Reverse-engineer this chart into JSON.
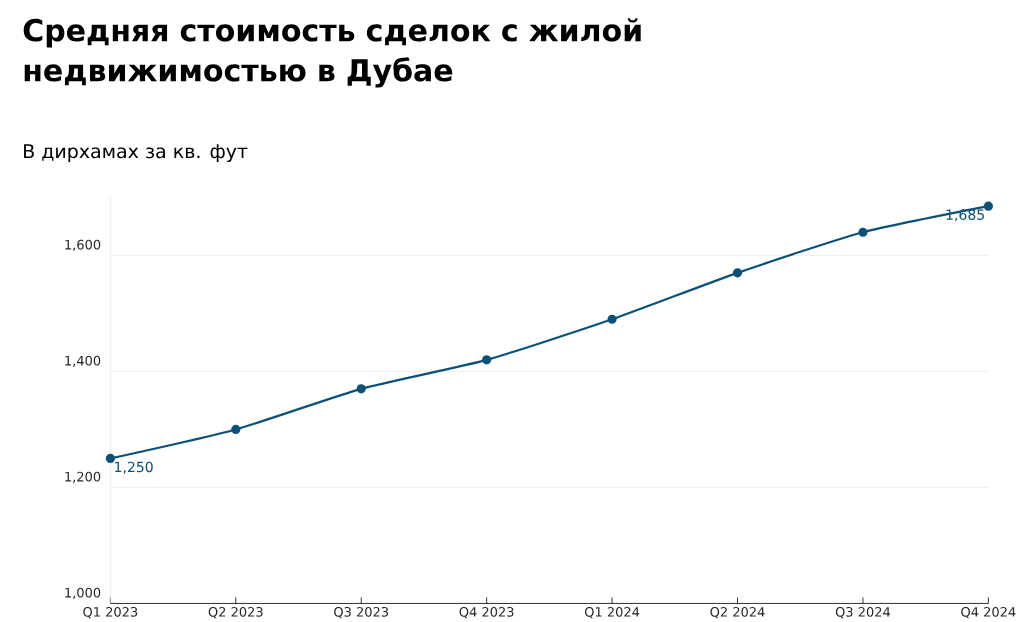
{
  "chart_data": {
    "type": "line",
    "title": "Средняя стоимость сделок с жилой недвижимостью в Дубае",
    "subtitle": "В дирхамах за кв. фут",
    "categories": [
      "Q1 2023",
      "Q2 2023",
      "Q3 2023",
      "Q4 2023",
      "Q1 2024",
      "Q2 2024",
      "Q3 2024",
      "Q4 2024"
    ],
    "series": [
      {
        "color": "#0b5177",
        "values": [
          1250,
          1300,
          1370,
          1420,
          1490,
          1570,
          1640,
          1685
        ],
        "value_labels": [
          "1,250",
          null,
          null,
          null,
          null,
          null,
          null,
          "1,685"
        ]
      }
    ],
    "yticks": [
      {
        "value": 1000,
        "label": "1,000"
      },
      {
        "value": 1200,
        "label": "1,200"
      },
      {
        "value": 1400,
        "label": "1,400"
      },
      {
        "value": 1600,
        "label": "1,600"
      }
    ],
    "ylim": [
      1000,
      1700
    ],
    "grid": "y",
    "marker": "circle",
    "line_style": "solid"
  }
}
